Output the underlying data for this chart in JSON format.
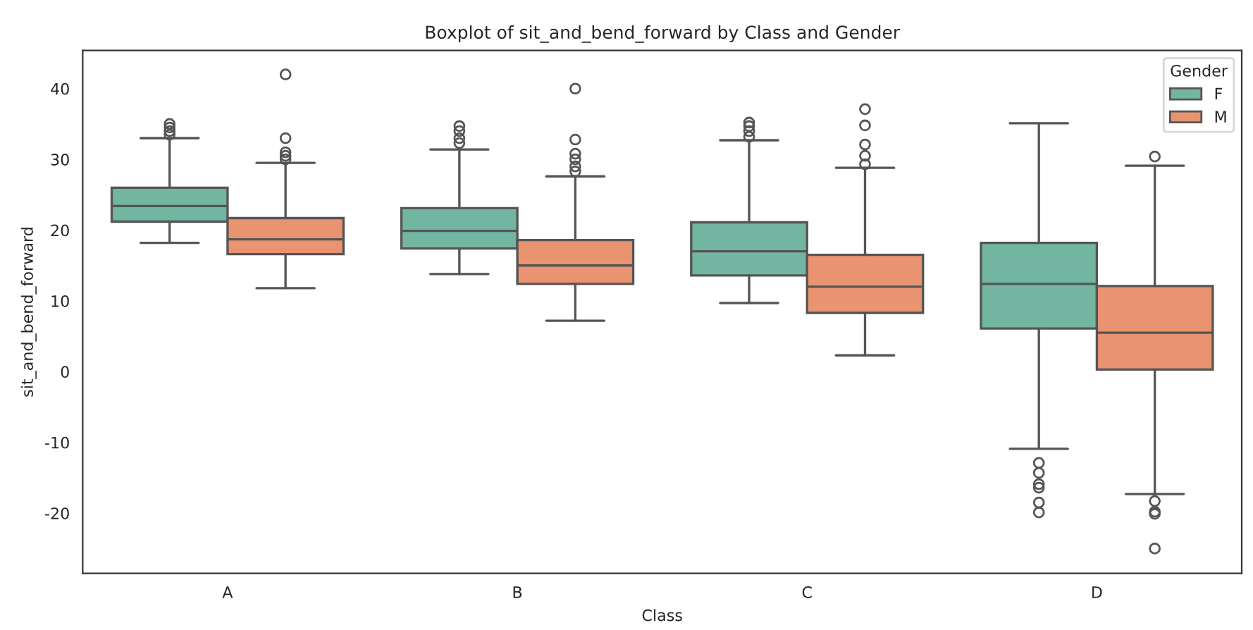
{
  "chart_data": {
    "type": "box",
    "title": "Boxplot of sit_and_bend_forward by Class and Gender",
    "xlabel": "Class",
    "ylabel": "sit_and_bend_forward",
    "legend_title": "Gender",
    "categories": [
      "A",
      "B",
      "C",
      "D"
    ],
    "series": [
      {
        "name": "F",
        "color": "#72b6a1",
        "boxes": [
          {
            "low": 18.2,
            "q1": 21.2,
            "median": 23.4,
            "q3": 26,
            "high": 33,
            "outliers": [
              33.5,
              34,
              34.5,
              35
            ]
          },
          {
            "low": 13.8,
            "q1": 17.4,
            "median": 19.9,
            "q3": 23.1,
            "high": 31.4,
            "outliers": [
              32.3,
              33,
              34,
              34.7
            ]
          },
          {
            "low": 9.7,
            "q1": 13.6,
            "median": 17,
            "q3": 21.1,
            "high": 32.7,
            "outliers": [
              33.2,
              34,
              34.7,
              35.2
            ]
          },
          {
            "low": -10.9,
            "q1": 6.1,
            "median": 12.4,
            "q3": 18.2,
            "high": 35.1,
            "outliers": [
              -12.9,
              -14.3,
              -15.9,
              -16.4,
              -18.5,
              -19.9
            ]
          }
        ]
      },
      {
        "name": "M",
        "color": "#e99370",
        "boxes": [
          {
            "low": 11.8,
            "q1": 16.6,
            "median": 18.7,
            "q3": 21.7,
            "high": 29.5,
            "outliers": [
              30,
              30.5,
              31,
              33,
              42
            ]
          },
          {
            "low": 7.2,
            "q1": 12.4,
            "median": 15,
            "q3": 18.6,
            "high": 27.6,
            "outliers": [
              28.3,
              29,
              30,
              30.8,
              32.8,
              40
            ]
          },
          {
            "low": 2.3,
            "q1": 8.3,
            "median": 12,
            "q3": 16.5,
            "high": 28.8,
            "outliers": [
              29.3,
              30.5,
              32.1,
              34.8,
              37.1
            ]
          },
          {
            "low": -17.3,
            "q1": 0.3,
            "median": 5.5,
            "q3": 12.1,
            "high": 29.1,
            "outliers": [
              30.4,
              -18.3,
              -19.8,
              -20.1,
              -25
            ]
          }
        ]
      }
    ],
    "ylim": [
      -28.5,
      45.4
    ],
    "yticks": [
      -20,
      -10,
      0,
      10,
      20,
      30,
      40
    ],
    "legend": "top right",
    "grid": false
  }
}
